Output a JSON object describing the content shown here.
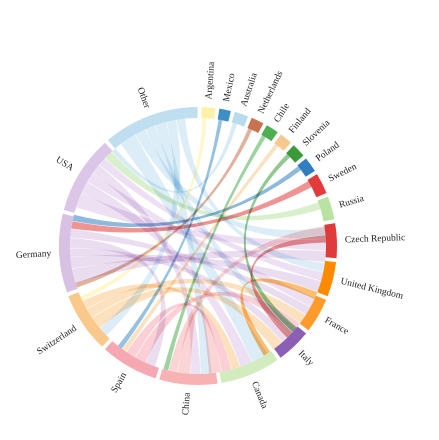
{
  "diagram": {
    "type": "chord",
    "segments": [
      {
        "name": "Argentina",
        "color": "#fff2a8",
        "weight": 1.2
      },
      {
        "name": "Mexico",
        "color": "#3f8fc7",
        "weight": 1.0
      },
      {
        "name": "Australia",
        "color": "#b8dcee",
        "weight": 1.2
      },
      {
        "name": "Netherlands",
        "color": "#c8724f",
        "weight": 1.1
      },
      {
        "name": "Chile",
        "color": "#4caf50",
        "weight": 1.1
      },
      {
        "name": "Finland",
        "color": "#f6c98f",
        "weight": 1.1
      },
      {
        "name": "Slovenia",
        "color": "#3a9a3a",
        "weight": 1.2
      },
      {
        "name": "Poland",
        "color": "#2f7fc0",
        "weight": 1.3
      },
      {
        "name": "Sweden",
        "color": "#e23b3b",
        "weight": 1.8
      },
      {
        "name": "Russia",
        "color": "#b9e3a3",
        "weight": 2.0
      },
      {
        "name": "Czech Republic",
        "color": "#e03b3b",
        "weight": 3.0
      },
      {
        "name": "United Kingdom",
        "color": "#ff8a00",
        "weight": 3.0
      },
      {
        "name": "France",
        "color": "#ff9a2b",
        "weight": 3.0
      },
      {
        "name": "Italy",
        "color": "#8b5fb5",
        "weight": 3.0
      },
      {
        "name": "Canada",
        "color": "#d2ecc0",
        "weight": 5.2
      },
      {
        "name": "China",
        "color": "#f7b3b3",
        "weight": 5.0
      },
      {
        "name": "Spain",
        "color": "#f6a8b2",
        "weight": 5.0
      },
      {
        "name": "Switzerland",
        "color": "#f9c98b",
        "weight": 5.2
      },
      {
        "name": "Germany",
        "color": "#d9c1e3",
        "weight": 6.8
      },
      {
        "name": "USA",
        "color": "#dcc6e8",
        "weight": 6.8
      },
      {
        "name": "Other",
        "color": "#bfdff0",
        "weight": 8.3
      }
    ],
    "links": [
      {
        "source": "Other",
        "target": "Canada",
        "value": 1.4
      },
      {
        "source": "Other",
        "target": "Czech Republic",
        "value": 0.9
      },
      {
        "source": "Other",
        "target": "Italy",
        "value": 0.8
      },
      {
        "source": "Other",
        "target": "China",
        "value": 0.9
      },
      {
        "source": "Other",
        "target": "Switzerland",
        "value": 0.8
      },
      {
        "source": "Other",
        "target": "United Kingdom",
        "value": 0.7
      },
      {
        "source": "USA",
        "target": "Czech Republic",
        "value": 1.2
      },
      {
        "source": "USA",
        "target": "Canada",
        "value": 1.0
      },
      {
        "source": "USA",
        "target": "France",
        "value": 0.8
      },
      {
        "source": "USA",
        "target": "China",
        "value": 0.8
      },
      {
        "source": "USA",
        "target": "United Kingdom",
        "value": 0.7
      },
      {
        "source": "Germany",
        "target": "Czech Republic",
        "value": 1.2
      },
      {
        "source": "Germany",
        "target": "United Kingdom",
        "value": 0.9
      },
      {
        "source": "Germany",
        "target": "Italy",
        "value": 0.7
      },
      {
        "source": "Germany",
        "target": "Spain",
        "value": 0.8
      },
      {
        "source": "Germany",
        "target": "France",
        "value": 0.7
      },
      {
        "source": "Switzerland",
        "target": "Italy",
        "value": 1.0
      },
      {
        "source": "Switzerland",
        "target": "France",
        "value": 0.8
      },
      {
        "source": "Switzerland",
        "target": "Canada",
        "value": 0.7
      },
      {
        "source": "Spain",
        "target": "France",
        "value": 0.9
      },
      {
        "source": "Spain",
        "target": "Canada",
        "value": 0.8
      },
      {
        "source": "China",
        "target": "Canada",
        "value": 1.0
      },
      {
        "source": "China",
        "target": "Czech Republic",
        "value": 0.7
      },
      {
        "source": "Sweden",
        "target": "Germany",
        "value": 0.6
      },
      {
        "source": "Russia",
        "target": "USA",
        "value": 0.7
      },
      {
        "source": "Poland",
        "target": "Germany",
        "value": 0.5
      },
      {
        "source": "Slovenia",
        "target": "Italy",
        "value": 0.5
      },
      {
        "source": "Finland",
        "target": "Spain",
        "value": 0.4
      },
      {
        "source": "Chile",
        "target": "China",
        "value": 0.4
      },
      {
        "source": "Netherlands",
        "target": "Germany",
        "value": 0.4
      },
      {
        "source": "Australia",
        "target": "USA",
        "value": 0.4
      },
      {
        "source": "Mexico",
        "target": "Spain",
        "value": 0.4
      },
      {
        "source": "Argentina",
        "target": "Switzerland",
        "value": 0.4
      },
      {
        "source": "Czech Republic",
        "target": "Italy",
        "value": 0.6
      },
      {
        "source": "United Kingdom",
        "target": "Canada",
        "value": 0.6
      }
    ]
  }
}
